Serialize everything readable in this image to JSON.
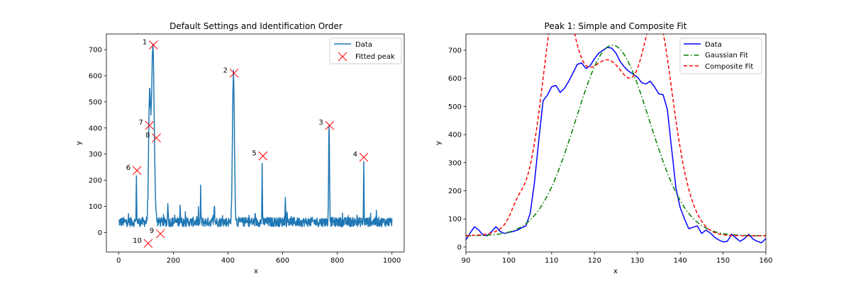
{
  "chart_data": [
    {
      "type": "line",
      "title": "Default Settings and Identification Order",
      "xlabel": "x",
      "ylabel": "y",
      "xlim": [
        -45,
        1045
      ],
      "ylim": [
        -75,
        760
      ],
      "xticks": [
        0,
        200,
        400,
        600,
        800,
        1000
      ],
      "yticks": [
        0,
        100,
        200,
        300,
        400,
        500,
        600,
        700
      ],
      "legend": {
        "position": "top-right",
        "entries": [
          "Data",
          "Fitted peak"
        ]
      },
      "series": [
        {
          "name": "Data",
          "color": "#1f77b4",
          "style": "line",
          "baseline": 40,
          "noise": 18,
          "peaks": [
            {
              "center": 125,
              "height": 670,
              "width": 5
            },
            {
              "center": 113,
              "height": 460,
              "width": 3.5
            },
            {
              "center": 420,
              "height": 570,
              "width": 3.5
            },
            {
              "center": 770,
              "height": 385,
              "width": 1.6
            },
            {
              "center": 897,
              "height": 245,
              "width": 0.8
            },
            {
              "center": 525,
              "height": 230,
              "width": 0.8
            },
            {
              "center": 65,
              "height": 190,
              "width": 0.8
            },
            {
              "center": 300,
              "height": 125,
              "width": 0.8
            },
            {
              "center": 610,
              "height": 105,
              "width": 0.8
            },
            {
              "center": 180,
              "height": 85,
              "width": 1
            },
            {
              "center": 225,
              "height": 75,
              "width": 1
            },
            {
              "center": 350,
              "height": 70,
              "width": 1
            }
          ]
        },
        {
          "name": "Fitted peak",
          "color": "#ff0000",
          "style": "marker-x",
          "points": [
            {
              "x": 127,
              "y": 718,
              "label": "1"
            },
            {
              "x": 422,
              "y": 610,
              "label": "2"
            },
            {
              "x": 772,
              "y": 410,
              "label": "3"
            },
            {
              "x": 897,
              "y": 288,
              "label": "4"
            },
            {
              "x": 528,
              "y": 293,
              "label": "5"
            },
            {
              "x": 67,
              "y": 237,
              "label": "6"
            },
            {
              "x": 113,
              "y": 410,
              "label": "7"
            },
            {
              "x": 138,
              "y": 362,
              "label": "8"
            },
            {
              "x": 153,
              "y": -5,
              "label": "9"
            },
            {
              "x": 108,
              "y": -42,
              "label": "10"
            }
          ]
        }
      ]
    },
    {
      "type": "line",
      "title": "Peak 1: Simple and Composite Fit",
      "xlabel": "x",
      "ylabel": "y",
      "xlim": [
        90,
        160
      ],
      "ylim": [
        -18,
        758
      ],
      "xticks": [
        90,
        100,
        110,
        120,
        130,
        140,
        150,
        160
      ],
      "yticks": [
        0,
        100,
        200,
        300,
        400,
        500,
        600,
        700
      ],
      "legend": {
        "position": "top-right",
        "entries": [
          "Data",
          "Gaussian Fit",
          "Composite Fit"
        ]
      },
      "series": [
        {
          "name": "Data",
          "color": "#0000ff",
          "dash": "",
          "x": [
            90,
            91,
            92,
            93,
            94,
            95,
            96,
            97,
            98,
            99,
            100,
            101,
            102,
            103,
            104,
            105,
            106,
            107,
            108,
            109,
            110,
            111,
            112,
            113,
            114,
            115,
            116,
            117,
            118,
            119,
            120,
            121,
            122,
            123,
            124,
            125,
            126,
            127,
            128,
            129,
            130,
            131,
            132,
            133,
            134,
            135,
            136,
            137,
            138,
            139,
            140,
            141,
            142,
            143,
            144,
            145,
            146,
            147,
            148,
            149,
            150,
            151,
            152,
            153,
            154,
            155,
            156,
            157,
            158,
            159,
            160
          ],
          "y": [
            25,
            50,
            72,
            60,
            42,
            40,
            55,
            72,
            55,
            48,
            52,
            55,
            60,
            68,
            75,
            120,
            230,
            380,
            520,
            540,
            570,
            575,
            550,
            565,
            590,
            620,
            650,
            655,
            635,
            645,
            670,
            690,
            700,
            710,
            708,
            690,
            660,
            640,
            625,
            615,
            605,
            585,
            580,
            590,
            570,
            545,
            542,
            490,
            350,
            210,
            140,
            100,
            65,
            70,
            75,
            48,
            60,
            50,
            35,
            25,
            18,
            20,
            45,
            32,
            20,
            30,
            45,
            28,
            20,
            15,
            30
          ],
          "marker": false
        },
        {
          "name": "Gaussian Fit",
          "color": "#008000",
          "dash": "7,3,1.5,3",
          "model": {
            "type": "gaussian",
            "baseline": 40,
            "amp": 678,
            "center": 124.2,
            "sigma": 8.6
          },
          "x_range": [
            90,
            160
          ]
        },
        {
          "name": "Composite Fit",
          "color": "#ff0000",
          "dash": "5,3",
          "model": {
            "type": "composite",
            "baseline": 40,
            "components": [
              {
                "amp": 470,
                "center": 111.5,
                "sigma": 3.2
              },
              {
                "amp": 360,
                "center": 134.5,
                "sigma": 3.0
              },
              {
                "amp": 560,
                "center": 124.0,
                "sigma": 5.8
              },
              {
                "amp": 360,
                "center": 112.0,
                "sigma": 6.0
              },
              {
                "amp": 340,
                "center": 136.0,
                "sigma": 4.6
              },
              {
                "amp": 40,
                "center": 102.0,
                "sigma": 1.5
              }
            ]
          },
          "x_range": [
            90,
            160
          ]
        }
      ]
    }
  ]
}
